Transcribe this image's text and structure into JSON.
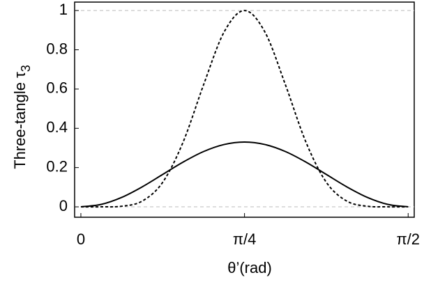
{
  "chart_data": {
    "type": "line",
    "xlabel": "θ’(rad)",
    "ylabel": "Three-tangle τ",
    "ylabel_subscript": "3",
    "x": [
      0,
      0.0982,
      0.1963,
      0.2945,
      0.3927,
      0.4909,
      0.589,
      0.6872,
      0.7854,
      0.8836,
      0.9817,
      1.0799,
      1.1781,
      1.2763,
      1.3744,
      1.4726,
      1.5708
    ],
    "series": [
      {
        "color": "#000000",
        "dashed": false,
        "values": [
          0,
          0.0126,
          0.0483,
          0.1019,
          0.165,
          0.2281,
          0.2817,
          0.3174,
          0.33,
          0.3174,
          0.2817,
          0.2281,
          0.165,
          0.1019,
          0.0483,
          0.0126,
          0
        ]
      },
      {
        "color": "#000000",
        "dashed": true,
        "values": [
          0,
          0.0001,
          0.0031,
          0.0294,
          0.125,
          0.3304,
          0.6219,
          0.89,
          1,
          0.89,
          0.6219,
          0.3304,
          0.125,
          0.0294,
          0.0031,
          0.0001,
          0
        ]
      }
    ],
    "xlim": [
      -0.03,
      1.6
    ],
    "ylim": [
      -0.053,
      1.043
    ],
    "xticks": [
      {
        "value": 0,
        "label": "0"
      },
      {
        "value": 0.7854,
        "label": "π/4"
      },
      {
        "value": 1.5708,
        "label": "π/2"
      }
    ],
    "yticks": [
      0,
      0.2,
      0.4,
      0.6,
      0.8,
      1
    ],
    "gridlines": [
      0,
      1
    ]
  }
}
